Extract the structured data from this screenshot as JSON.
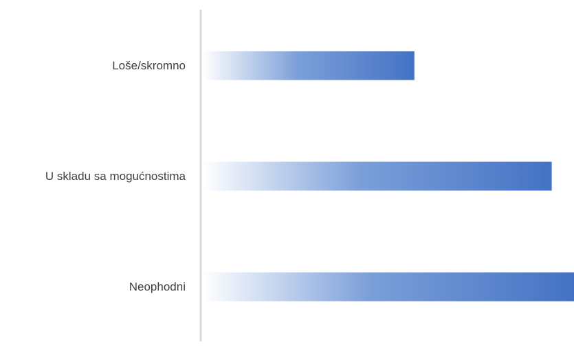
{
  "chart_data": {
    "type": "bar",
    "orientation": "horizontal",
    "categories": [
      "Loše/skromno",
      "U skladu sa mogućnostima",
      "Neophodni"
    ],
    "values": [
      57,
      94,
      100
    ],
    "xlim": [
      0,
      100
    ],
    "title": "",
    "xlabel": "",
    "ylabel": "",
    "grid": false,
    "legend": "none",
    "colors": {
      "bar_start": "#ffffff",
      "bar_mid": "#7b9fd9",
      "bar_end": "#4472c4",
      "axis": "#d9d9d9",
      "label": "#404040"
    }
  }
}
